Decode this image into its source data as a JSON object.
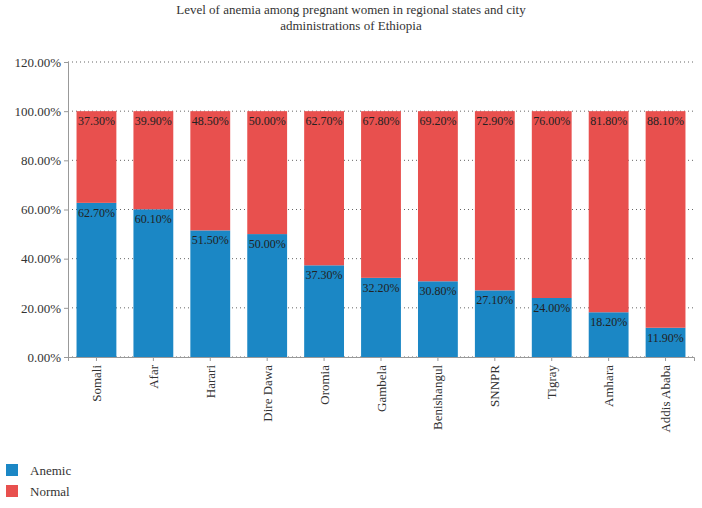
{
  "chart_data": {
    "type": "bar",
    "title": "Level of anemia among pregnant women in regional states and city administrations of Ethiopia",
    "categories": [
      "Somali",
      "Afar",
      "Harari",
      "Dire Dawa",
      "Oromia",
      "Gambela",
      "Benishangul",
      "SNNPR",
      "Tigray",
      "Amhara",
      "Addis Ababa"
    ],
    "series": [
      {
        "name": "Anemic",
        "color": "#1b87c5",
        "values": [
          62.7,
          60.1,
          51.5,
          50.0,
          37.3,
          32.2,
          30.8,
          27.1,
          24.0,
          18.2,
          11.9
        ],
        "value_labels": [
          "62.70%",
          "60.10%",
          "51.50%",
          "50.00%",
          "37.30%",
          "32.20%",
          "30.80%",
          "27.10%",
          "24.00%",
          "18.20%",
          "11.90%"
        ]
      },
      {
        "name": "Normal",
        "color": "#e8504e",
        "values": [
          37.3,
          39.9,
          48.5,
          50.0,
          62.7,
          67.8,
          69.2,
          72.9,
          76.0,
          81.8,
          88.1
        ],
        "value_labels": [
          "37.30%",
          "39.90%",
          "48.50%",
          "50.00%",
          "62.70%",
          "67.80%",
          "69.20%",
          "72.90%",
          "76.00%",
          "81.80%",
          "88.10%"
        ]
      }
    ],
    "stacked": true,
    "data_labels": true,
    "grid": true,
    "legend": "bottom-left",
    "ylim": [
      0,
      120
    ],
    "yticks": [
      {
        "value": 0,
        "label": "0.00%"
      },
      {
        "value": 20,
        "label": "20.00%"
      },
      {
        "value": 40,
        "label": "40.00%"
      },
      {
        "value": 60,
        "label": "60.00%"
      },
      {
        "value": 80,
        "label": "80.00%"
      },
      {
        "value": 100,
        "label": "100.00%"
      },
      {
        "value": 120,
        "label": "120.00%"
      }
    ]
  }
}
